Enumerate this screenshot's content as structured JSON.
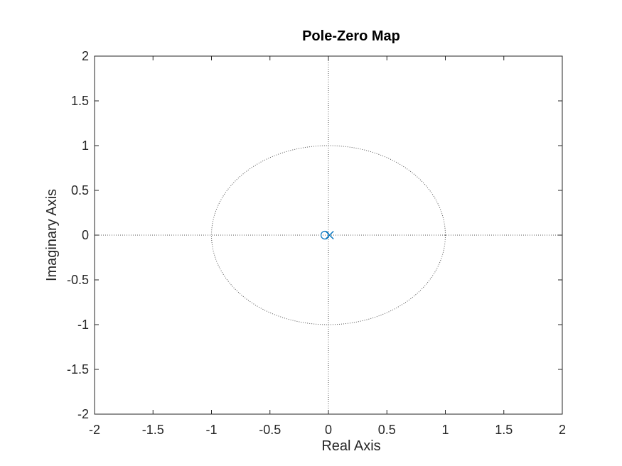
{
  "chart_data": {
    "type": "scatter",
    "title": "Pole-Zero Map",
    "xlabel": "Real Axis",
    "ylabel": "Imaginary Axis",
    "xlim": [
      -2,
      2
    ],
    "ylim": [
      -2,
      2
    ],
    "xticks": [
      "-2",
      "-1.5",
      "-1",
      "-0.5",
      "0",
      "0.5",
      "1",
      "1.5",
      "2"
    ],
    "yticks": [
      "-2",
      "-1.5",
      "-1",
      "-0.5",
      "0",
      "0.5",
      "1",
      "1.5",
      "2"
    ],
    "xtick_values": [
      -2,
      -1.5,
      -1,
      -0.5,
      0,
      0.5,
      1,
      1.5,
      2
    ],
    "ytick_values": [
      -2,
      -1.5,
      -1,
      -0.5,
      0,
      0.5,
      1,
      1.5,
      2
    ],
    "grid": false,
    "unit_circle": true,
    "zero_lines": true,
    "series": [
      {
        "marker": "o",
        "kind": "zero",
        "color": "#0072BD",
        "points": [
          {
            "x": -0.03,
            "y": 0
          }
        ]
      },
      {
        "marker": "x",
        "kind": "pole",
        "color": "#0072BD",
        "points": [
          {
            "x": 0.01,
            "y": 0
          }
        ]
      }
    ]
  }
}
